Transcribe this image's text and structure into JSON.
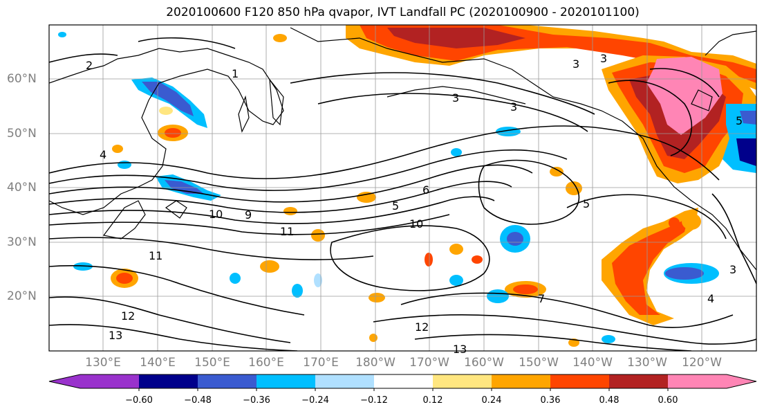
{
  "title": "2020100600 F120 850 hPa qvapor, IVT Landfall PC (2020100900 - 2020101100)",
  "lat_labels": [
    "60°N",
    "50°N",
    "40°N",
    "30°N",
    "20°N"
  ],
  "lon_labels": [
    "130°E",
    "140°E",
    "150°E",
    "160°E",
    "170°E",
    "180°W",
    "170°W",
    "160°W",
    "150°W",
    "140°W",
    "130°W",
    "120°W"
  ],
  "colorbar": {
    "colors": [
      "#9932cc",
      "#00008b",
      "#3a5bd0",
      "#00bfff",
      "#b0e0ff",
      "#ffffff",
      "#ffe680",
      "#ffa500",
      "#ff4500",
      "#b22222",
      "#ff85b5"
    ],
    "ticks": [
      "−0.60",
      "−0.48",
      "−0.36",
      "−0.24",
      "−0.12",
      "0.12",
      "0.24",
      "0.36",
      "0.48",
      "0.60"
    ]
  },
  "contour_labels": [
    "2",
    "3",
    "3",
    "3",
    "3",
    "4",
    "5",
    "5",
    "5",
    "6",
    "9",
    "10",
    "10",
    "11",
    "11",
    "12",
    "12",
    "13",
    "13",
    "7",
    "4",
    "1",
    "3"
  ]
}
